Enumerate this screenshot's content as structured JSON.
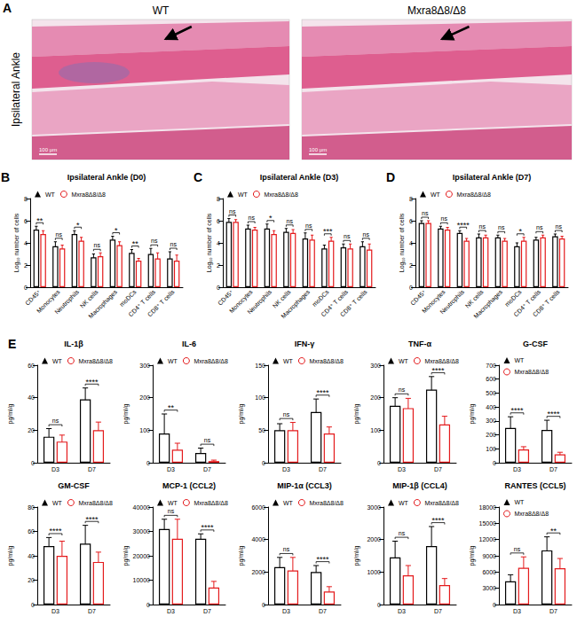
{
  "panel_a": {
    "panel": "A",
    "row_label": "Ipsilateral Ankle",
    "images": [
      {
        "title": "WT",
        "scale_bar": "100 µm"
      },
      {
        "title": "Mxra8Δ8/Δ8",
        "scale_bar": "100 µm"
      }
    ]
  },
  "chart_data": [
    {
      "panel": "B",
      "type": "bar",
      "title": "Ipsilateral Ankle (D0)",
      "y_label": "Log₁₀ number of cells",
      "categories": [
        "CD45⁺",
        "Monocytes",
        "Neutrophils",
        "NK cells",
        "Macrophages",
        "moDCs",
        "CD4⁺ T cells",
        "CD8⁺ T cells"
      ],
      "series": [
        {
          "name": "WT",
          "color": "#000000",
          "marker": "triangle",
          "values": [
            5.2,
            3.7,
            4.8,
            2.7,
            4.3,
            3.1,
            3.0,
            2.6
          ],
          "errors": [
            0.3,
            0.4,
            0.3,
            0.3,
            0.3,
            0.3,
            0.5,
            0.6
          ]
        },
        {
          "name": "Mxra8Δ8/Δ8",
          "color": "#e41a1c",
          "marker": "circle-open",
          "values": [
            4.8,
            3.5,
            4.2,
            2.8,
            3.8,
            2.4,
            2.6,
            2.4
          ],
          "errors": [
            0.3,
            0.3,
            0.3,
            0.3,
            0.3,
            0.2,
            0.5,
            0.5
          ]
        }
      ],
      "significance": [
        "**",
        "ns",
        "*",
        "ns",
        "*",
        "**",
        "ns",
        "ns"
      ],
      "ylim": [
        0,
        8
      ],
      "yticks": [
        0,
        2,
        4,
        6,
        8
      ],
      "grid": false,
      "legend": "top-left"
    },
    {
      "panel": "C",
      "type": "bar",
      "title": "Ipsilateral Ankle (D3)",
      "y_label": "Log₁₀ number of cells",
      "categories": [
        "CD45⁺",
        "Monocytes",
        "Neutrophils",
        "NK cells",
        "Macrophages",
        "moDCs",
        "CD4⁺ T cells",
        "CD8⁺ T cells"
      ],
      "series": [
        {
          "name": "WT",
          "color": "#000000",
          "marker": "triangle",
          "values": [
            5.9,
            5.3,
            5.3,
            5.0,
            4.4,
            3.5,
            3.6,
            3.7
          ],
          "errors": [
            0.3,
            0.3,
            0.4,
            0.3,
            0.5,
            0.3,
            0.3,
            0.4
          ]
        },
        {
          "name": "Mxra8Δ8/Δ8",
          "color": "#e41a1c",
          "marker": "circle-open",
          "values": [
            5.9,
            5.2,
            4.8,
            4.9,
            4.3,
            4.2,
            3.5,
            3.4
          ],
          "errors": [
            0.2,
            0.2,
            0.3,
            0.3,
            0.4,
            0.3,
            0.4,
            0.5
          ]
        }
      ],
      "significance": [
        "ns",
        "ns",
        "*",
        "ns",
        "ns",
        "***",
        "ns",
        "ns"
      ],
      "ylim": [
        0,
        8
      ],
      "yticks": [
        0,
        2,
        4,
        6,
        8
      ],
      "grid": false,
      "legend": "top-left"
    },
    {
      "panel": "D",
      "type": "bar",
      "title": "Ipsilateral Ankle (D7)",
      "y_label": "Log₁₀ number of cells",
      "categories": [
        "CD45⁺",
        "Monocytes",
        "Neutrophils",
        "NK cells",
        "Macrophages",
        "moDCs",
        "CD4⁺ T cells",
        "CD8⁺ T cells"
      ],
      "series": [
        {
          "name": "WT",
          "color": "#000000",
          "marker": "triangle",
          "values": [
            5.8,
            5.3,
            4.9,
            4.5,
            4.5,
            3.7,
            4.3,
            4.6
          ],
          "errors": [
            0.2,
            0.2,
            0.2,
            0.3,
            0.2,
            0.3,
            0.2,
            0.2
          ]
        },
        {
          "name": "Mxra8Δ8/Δ8",
          "color": "#e41a1c",
          "marker": "circle-open",
          "values": [
            5.8,
            5.2,
            4.2,
            4.5,
            4.2,
            4.2,
            4.5,
            4.4
          ],
          "errors": [
            0.2,
            0.2,
            0.2,
            0.2,
            0.2,
            0.3,
            0.2,
            0.2
          ]
        }
      ],
      "significance": [
        "ns",
        "ns",
        "****",
        "ns",
        "ns",
        "*",
        "ns",
        "ns"
      ],
      "ylim": [
        0,
        8
      ],
      "yticks": [
        0,
        2,
        4,
        6,
        8
      ],
      "grid": false,
      "legend": "top-left"
    },
    {
      "panel": "E",
      "type": "bar",
      "title": "IL-1β",
      "y_label": "pg/ml/g",
      "categories": [
        "D3",
        "D7"
      ],
      "series": [
        {
          "name": "WT",
          "color": "#000000",
          "marker": "triangle",
          "values": [
            16,
            39
          ],
          "errors": [
            5,
            7
          ]
        },
        {
          "name": "Mxra8Δ8/Δ8",
          "color": "#e41a1c",
          "marker": "circle-open",
          "values": [
            13,
            20
          ],
          "errors": [
            4,
            5
          ]
        }
      ],
      "significance": [
        "ns",
        "****"
      ],
      "ylim": [
        0,
        60
      ],
      "yticks": [
        0,
        20,
        40,
        60
      ],
      "grid": false,
      "legend": "top-left"
    },
    {
      "type": "bar",
      "title": "IL-6",
      "y_label": "pg/ml/g",
      "categories": [
        "D3",
        "D7"
      ],
      "series": [
        {
          "name": "WT",
          "color": "#000000",
          "marker": "triangle",
          "values": [
            90,
            30
          ],
          "errors": [
            60,
            15
          ]
        },
        {
          "name": "Mxra8Δ8/Δ8",
          "color": "#e41a1c",
          "marker": "circle-open",
          "values": [
            40,
            5
          ],
          "errors": [
            20,
            3
          ]
        }
      ],
      "significance": [
        "**",
        "ns"
      ],
      "ylim": [
        0,
        300
      ],
      "yticks": [
        0,
        100,
        200,
        300
      ],
      "grid": false,
      "legend": "top-left"
    },
    {
      "type": "bar",
      "title": "IFN-γ",
      "y_label": "pg/ml/g",
      "categories": [
        "D3",
        "D7"
      ],
      "series": [
        {
          "name": "WT",
          "color": "#000000",
          "marker": "triangle",
          "values": [
            50,
            78
          ],
          "errors": [
            10,
            20
          ]
        },
        {
          "name": "Mxra8Δ8/Δ8",
          "color": "#e41a1c",
          "marker": "circle-open",
          "values": [
            50,
            45
          ],
          "errors": [
            12,
            10
          ]
        }
      ],
      "significance": [
        "ns",
        "****"
      ],
      "ylim": [
        0,
        150
      ],
      "yticks": [
        0,
        50,
        100,
        150
      ],
      "grid": false,
      "legend": "top-left"
    },
    {
      "type": "bar",
      "title": "TNF-α",
      "y_label": "pg/ml/g",
      "categories": [
        "D3",
        "D7"
      ],
      "series": [
        {
          "name": "WT",
          "color": "#000000",
          "marker": "triangle",
          "values": [
            175,
            225
          ],
          "errors": [
            25,
            40
          ]
        },
        {
          "name": "Mxra8Δ8/Δ8",
          "color": "#e41a1c",
          "marker": "circle-open",
          "values": [
            168,
            118
          ],
          "errors": [
            30,
            25
          ]
        }
      ],
      "significance": [
        "ns",
        "****"
      ],
      "ylim": [
        0,
        300
      ],
      "yticks": [
        0,
        100,
        200,
        300
      ],
      "grid": false,
      "legend": "top-left"
    },
    {
      "type": "bar",
      "title": "G-CSF",
      "y_label": "pg/ml/g",
      "categories": [
        "D3",
        "D7"
      ],
      "series": [
        {
          "name": "WT",
          "color": "#000000",
          "marker": "triangle",
          "values": [
            250,
            235
          ],
          "errors": [
            80,
            70
          ]
        },
        {
          "name": "Mxra8Δ8/Δ8",
          "color": "#e41a1c",
          "marker": "circle-open",
          "values": [
            95,
            60
          ],
          "errors": [
            20,
            15
          ]
        }
      ],
      "significance": [
        "****",
        "****"
      ],
      "ylim": [
        0,
        700
      ],
      "yticks": [
        0,
        100,
        200,
        300,
        400,
        500,
        600,
        700
      ],
      "grid": false,
      "legend": "top-left"
    },
    {
      "type": "bar",
      "title": "GM-CSF",
      "y_label": "pg/ml/g",
      "categories": [
        "D3",
        "D7"
      ],
      "series": [
        {
          "name": "WT",
          "color": "#000000",
          "marker": "triangle",
          "values": [
            48,
            50
          ],
          "errors": [
            7,
            15
          ]
        },
        {
          "name": "Mxra8Δ8/Δ8",
          "color": "#e41a1c",
          "marker": "circle-open",
          "values": [
            40,
            35
          ],
          "errors": [
            12,
            8
          ]
        }
      ],
      "significance": [
        "****",
        "****"
      ],
      "ylim": [
        0,
        80
      ],
      "yticks": [
        0,
        20,
        40,
        60,
        80
      ],
      "grid": false,
      "legend": "top-left"
    },
    {
      "type": "bar",
      "title": "MCP-1 (CCL2)",
      "y_label": "pg/ml/g",
      "categories": [
        "D3",
        "D7"
      ],
      "series": [
        {
          "name": "WT",
          "color": "#000000",
          "marker": "triangle",
          "values": [
            31000,
            27000
          ],
          "errors": [
            4000,
            2000
          ]
        },
        {
          "name": "Mxra8Δ8/Δ8",
          "color": "#e41a1c",
          "marker": "circle-open",
          "values": [
            27000,
            7000
          ],
          "errors": [
            8000,
            2500
          ]
        }
      ],
      "significance": [
        "ns",
        "****"
      ],
      "ylim": [
        0,
        40000
      ],
      "yticks": [
        0,
        10000,
        20000,
        30000,
        40000
      ],
      "grid": false,
      "legend": "top-left"
    },
    {
      "type": "bar",
      "title": "MIP-1α (CCL3)",
      "y_label": "pg/ml/g",
      "categories": [
        "D3",
        "D7"
      ],
      "series": [
        {
          "name": "WT",
          "color": "#000000",
          "marker": "triangle",
          "values": [
            2300,
            2000
          ],
          "errors": [
            600,
            400
          ]
        },
        {
          "name": "Mxra8Δ8/Δ8",
          "color": "#e41a1c",
          "marker": "circle-open",
          "values": [
            2100,
            800
          ],
          "errors": [
            800,
            300
          ]
        }
      ],
      "significance": [
        "ns",
        "****"
      ],
      "ylim": [
        0,
        6000
      ],
      "yticks": [
        0,
        2000,
        4000,
        6000
      ],
      "grid": false,
      "legend": "top-left"
    },
    {
      "type": "bar",
      "title": "MIP-1β (CCL4)",
      "y_label": "pg/ml/g",
      "categories": [
        "D3",
        "D7"
      ],
      "series": [
        {
          "name": "WT",
          "color": "#000000",
          "marker": "triangle",
          "values": [
            1450,
            1800
          ],
          "errors": [
            500,
            600
          ]
        },
        {
          "name": "Mxra8Δ8/Δ8",
          "color": "#e41a1c",
          "marker": "circle-open",
          "values": [
            900,
            600
          ],
          "errors": [
            300,
            200
          ]
        }
      ],
      "significance": [
        "ns",
        "****"
      ],
      "ylim": [
        0,
        3000
      ],
      "yticks": [
        0,
        1000,
        2000,
        3000
      ],
      "grid": false,
      "legend": "top-left"
    },
    {
      "type": "bar",
      "title": "RANTES (CCL5)",
      "y_label": "pg/ml/g",
      "categories": [
        "D3",
        "D7"
      ],
      "series": [
        {
          "name": "WT",
          "color": "#000000",
          "marker": "triangle",
          "values": [
            4300,
            10000
          ],
          "errors": [
            1200,
            2500
          ]
        },
        {
          "name": "Mxra8Δ8/Δ8",
          "color": "#e41a1c",
          "marker": "circle-open",
          "values": [
            6800,
            6700
          ],
          "errors": [
            2000,
            1800
          ]
        }
      ],
      "significance": [
        "ns",
        "**"
      ],
      "ylim": [
        0,
        18000
      ],
      "yticks": [
        0,
        3000,
        6000,
        9000,
        12000,
        15000,
        18000
      ],
      "grid": false,
      "legend": "top-left"
    }
  ]
}
